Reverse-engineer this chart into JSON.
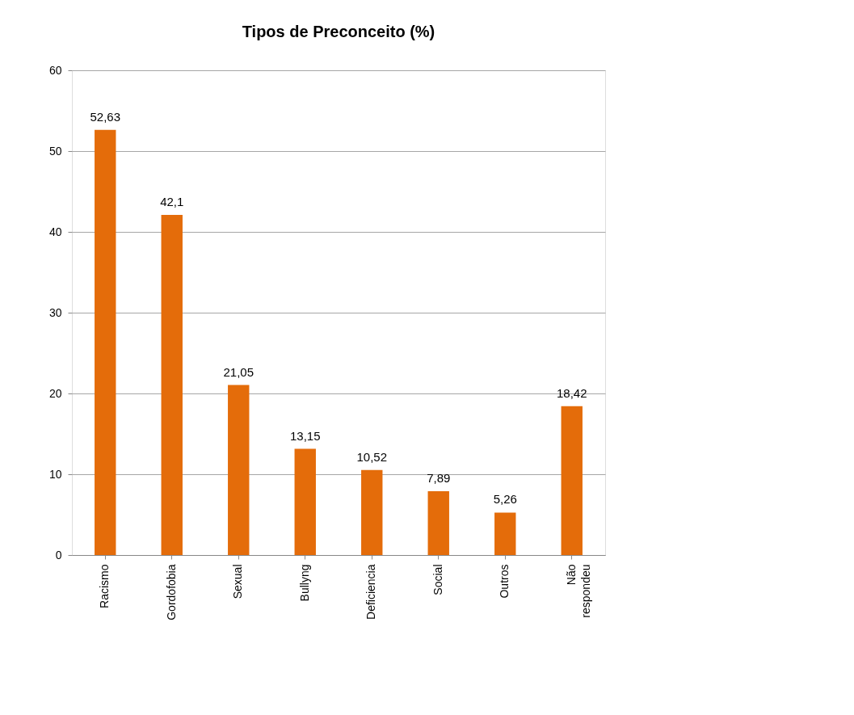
{
  "chart_data": {
    "type": "bar",
    "title": "Tipos de Preconceito (%)",
    "categories": [
      "Racismo",
      "Gordofobia",
      "Sexual",
      "Bullyng",
      "Deficiencia",
      "Social",
      "Outros",
      "Não respondeu"
    ],
    "values": [
      52.63,
      42.1,
      21.05,
      13.15,
      10.52,
      7.89,
      5.26,
      18.42
    ],
    "value_labels": [
      "52,63",
      "42,1",
      "21,05",
      "13,15",
      "10,52",
      "7,89",
      "5,26",
      "18,42"
    ],
    "color": "#e46c0a",
    "ylim": [
      0,
      60
    ],
    "yticks": [
      0,
      10,
      20,
      30,
      40,
      50,
      60
    ],
    "grid": "y"
  }
}
